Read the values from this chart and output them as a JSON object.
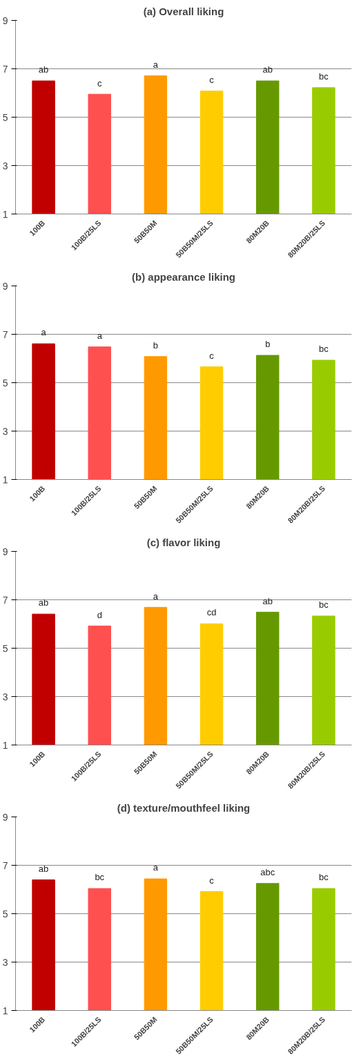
{
  "chart_data": [
    {
      "type": "bar",
      "title": "(a) Overall liking",
      "categories": [
        "100B",
        "100B/25LS",
        "50B50M",
        "50B50M/25LS",
        "80M20B",
        "80M20B/25LS"
      ],
      "colors": [
        "#c00000",
        "#ff5050",
        "#ff9900",
        "#ffcc00",
        "#669900",
        "#99cc00"
      ],
      "values": [
        6.5,
        5.95,
        6.71,
        6.08,
        6.5,
        6.22
      ],
      "value_labels": [
        "ab",
        "c",
        "a",
        "c",
        "ab",
        "bc"
      ],
      "ylim": [
        1,
        9
      ],
      "yticks": [
        1,
        3,
        5,
        7,
        9
      ],
      "grid": "y"
    },
    {
      "type": "bar",
      "title": "(b) appearance liking",
      "categories": [
        "100B",
        "100B/25LS",
        "50B50M",
        "50B50M/25LS",
        "80M20B",
        "80M20B/25LS"
      ],
      "colors": [
        "#c00000",
        "#ff5050",
        "#ff9900",
        "#ffcc00",
        "#669900",
        "#99cc00"
      ],
      "values": [
        6.61,
        6.48,
        6.08,
        5.66,
        6.13,
        5.93
      ],
      "value_labels": [
        "a",
        "a",
        "b",
        "c",
        "b",
        "bc"
      ],
      "ylim": [
        1,
        9
      ],
      "yticks": [
        1,
        3,
        5,
        7,
        9
      ],
      "grid": "y"
    },
    {
      "type": "bar",
      "title": "(c) flavor liking",
      "categories": [
        "100B",
        "100B/25LS",
        "50B50M",
        "50B50M/25LS",
        "80M20B",
        "80M20B/25LS"
      ],
      "colors": [
        "#c00000",
        "#ff5050",
        "#ff9900",
        "#ffcc00",
        "#669900",
        "#99cc00"
      ],
      "values": [
        6.41,
        5.92,
        6.69,
        6.01,
        6.49,
        6.33
      ],
      "value_labels": [
        "ab",
        "d",
        "a",
        "cd",
        "ab",
        "bc"
      ],
      "ylim": [
        1,
        9
      ],
      "yticks": [
        1,
        3,
        5,
        7,
        9
      ],
      "grid": "y"
    },
    {
      "type": "bar",
      "title": "(d) texture/mouthfeel liking",
      "categories": [
        "100B",
        "100B/25LS",
        "50B50M",
        "50B50M/25LS",
        "80M20B",
        "80M20B/25LS"
      ],
      "colors": [
        "#c00000",
        "#ff5050",
        "#ff9900",
        "#ffcc00",
        "#669900",
        "#99cc00"
      ],
      "values": [
        6.4,
        6.04,
        6.44,
        5.92,
        6.25,
        6.04
      ],
      "value_labels": [
        "ab",
        "bc",
        "a",
        "c",
        "abc",
        "bc"
      ],
      "ylim": [
        1,
        9
      ],
      "yticks": [
        1,
        3,
        5,
        7,
        9
      ],
      "grid": "y"
    }
  ]
}
